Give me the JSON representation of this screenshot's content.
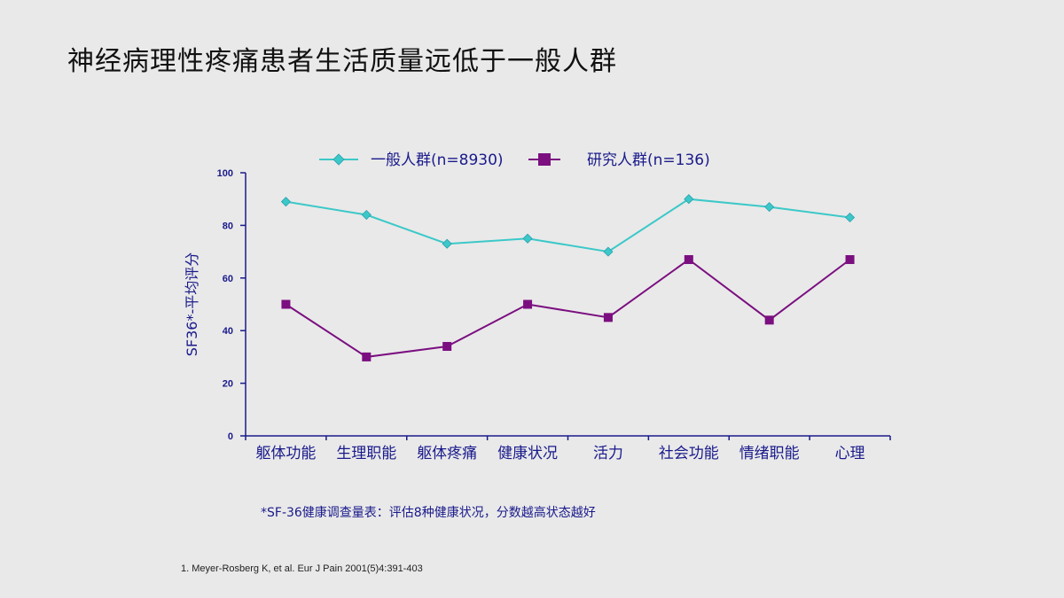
{
  "slide": {
    "title": "神经病理性疼痛患者生活质量远低于一般人群",
    "footnote": "*SF-36健康调查量表：评估8种健康状况，分数越高状态越好",
    "reference": "1. Meyer-Rosberg K, et al. Eur J Pain 2001(5)4:391-403"
  },
  "chart_data": {
    "type": "line",
    "title": "",
    "xlabel": "",
    "ylabel": "SF36*-平均评分",
    "categories": [
      "躯体功能",
      "生理职能",
      "躯体疼痛",
      "健康状况",
      "活力",
      "社会功能",
      "情绪职能",
      "心理"
    ],
    "ylim": [
      0,
      100
    ],
    "yticks": [
      0,
      20,
      40,
      60,
      80,
      100
    ],
    "legend_position": "top",
    "grid": false,
    "series": [
      {
        "name": "一般人群(n=8930)",
        "values": [
          89,
          84,
          73,
          75,
          70,
          90,
          87,
          83
        ],
        "color": "#3cc8c8",
        "marker": "diamond"
      },
      {
        "name": "研究人群(n=136)",
        "values": [
          50,
          30,
          34,
          50,
          45,
          67,
          44,
          67
        ],
        "color": "#7b0f80",
        "marker": "square"
      }
    ],
    "axis_color": "#1a1a8c"
  }
}
